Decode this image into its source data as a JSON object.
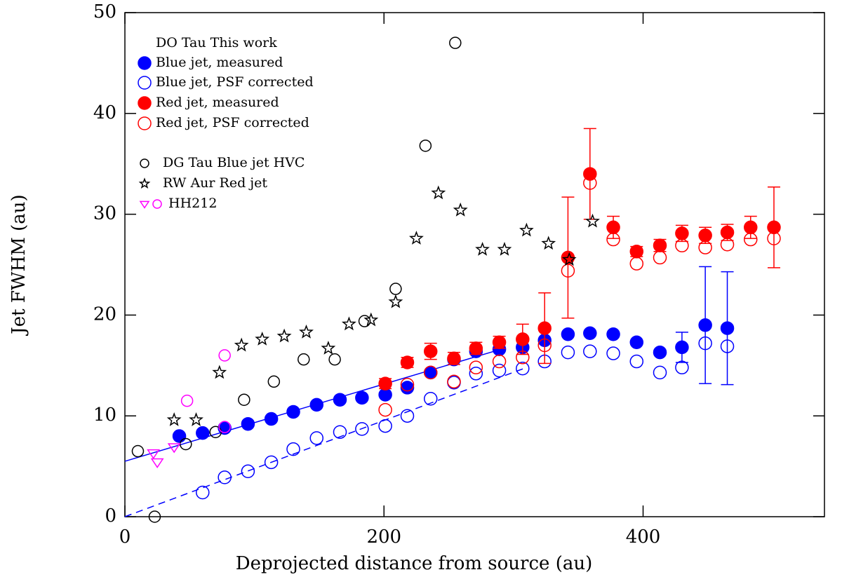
{
  "chart_data": {
    "type": "scatter",
    "xlabel": "Deprojected distance from source (au)",
    "ylabel": "Jet  FWHM (au)",
    "legend_title": "DO Tau This work",
    "legend": "upper left",
    "xlim": [
      0,
      540
    ],
    "ylim": [
      0,
      50
    ],
    "xticks": [
      0,
      200,
      400
    ],
    "yticks": [
      0,
      10,
      20,
      30,
      40,
      50
    ],
    "series": [
      {
        "name": "Blue jet, measured",
        "color": "#0000ff",
        "marker": "circle",
        "filled": true,
        "x": [
          42,
          60,
          77,
          95,
          113,
          130,
          148,
          166,
          183,
          201,
          218,
          236,
          254,
          271,
          289,
          307,
          324,
          342,
          359,
          377,
          395,
          413,
          430,
          448,
          465
        ],
        "values": [
          8.0,
          8.3,
          8.8,
          9.2,
          9.7,
          10.4,
          11.1,
          11.6,
          11.8,
          12.1,
          12.8,
          14.3,
          15.6,
          16.4,
          16.6,
          16.8,
          17.5,
          18.1,
          18.2,
          18.1,
          17.3,
          16.3,
          16.8,
          19.0,
          18.7
        ],
        "errors": [
          null,
          null,
          null,
          null,
          null,
          null,
          null,
          null,
          null,
          null,
          null,
          null,
          null,
          null,
          null,
          null,
          null,
          null,
          null,
          null,
          null,
          null,
          1.5,
          5.8,
          5.6
        ]
      },
      {
        "name": "Blue jet, PSF corrected",
        "color": "#0000ff",
        "marker": "circle",
        "filled": false,
        "x": [
          60,
          77,
          95,
          113,
          130,
          148,
          166,
          183,
          201,
          218,
          236,
          254,
          271,
          289,
          307,
          324,
          342,
          359,
          377,
          395,
          413,
          430,
          448,
          465
        ],
        "values": [
          2.4,
          3.9,
          4.5,
          5.4,
          6.7,
          7.8,
          8.4,
          8.7,
          9.0,
          10.0,
          11.7,
          13.3,
          14.2,
          14.5,
          14.7,
          15.4,
          16.3,
          16.4,
          16.2,
          15.4,
          14.3,
          14.8,
          17.2,
          16.9
        ]
      },
      {
        "name": "Red jet, measured",
        "color": "#ff0000",
        "marker": "circle",
        "filled": true,
        "x": [
          201,
          218,
          236,
          254,
          271,
          289,
          307,
          324,
          342,
          359,
          377,
          395,
          413,
          430,
          448,
          465,
          483,
          501
        ],
        "values": [
          13.2,
          15.3,
          16.4,
          15.7,
          16.7,
          17.3,
          17.6,
          18.7,
          25.7,
          34.0,
          28.7,
          26.3,
          26.9,
          28.1,
          27.9,
          28.2,
          28.7,
          28.7
        ],
        "errors": [
          0.5,
          0.5,
          0.8,
          0.6,
          0.6,
          0.6,
          1.5,
          3.5,
          6.0,
          4.5,
          1.1,
          0.5,
          0.6,
          0.8,
          0.8,
          0.8,
          1.1,
          4.0
        ]
      },
      {
        "name": "Red jet, PSF corrected",
        "color": "#ff0000",
        "marker": "circle",
        "filled": false,
        "x": [
          201,
          218,
          236,
          254,
          271,
          289,
          307,
          324,
          342,
          359,
          377,
          395,
          413,
          430,
          448,
          465,
          483,
          501
        ],
        "values": [
          10.6,
          13.1,
          14.3,
          13.4,
          14.8,
          15.4,
          15.8,
          17.0,
          24.4,
          33.1,
          27.5,
          25.1,
          25.7,
          26.9,
          26.7,
          27.0,
          27.5,
          27.6
        ]
      },
      {
        "name": "DG Tau Blue jet HVC",
        "color": "#000000",
        "marker": "circle",
        "filled": false,
        "x": [
          10,
          23,
          47,
          70,
          92,
          115,
          138,
          162,
          185,
          209,
          232,
          255
        ],
        "values": [
          6.5,
          0,
          7.2,
          8.4,
          11.6,
          13.4,
          15.6,
          15.6,
          19.4,
          22.6,
          36.8,
          47.0
        ]
      },
      {
        "name": "RW Aur Red jet",
        "color": "#000000",
        "marker": "star",
        "filled": false,
        "x": [
          38,
          55,
          73,
          90,
          106,
          123,
          140,
          157,
          173,
          190,
          209,
          225,
          242,
          259,
          276,
          293,
          310,
          327,
          343,
          361
        ],
        "values": [
          9.6,
          9.6,
          14.3,
          17.0,
          17.6,
          17.9,
          18.3,
          16.7,
          19.1,
          19.5,
          21.3,
          27.6,
          32.1,
          30.4,
          26.5,
          26.5,
          28.4,
          27.1,
          25.5,
          29.3
        ]
      },
      {
        "name": "HH212",
        "color": "#ff00ff",
        "marker": "triangle",
        "filled": false,
        "x": [
          22,
          25,
          38
        ],
        "values": [
          6.3,
          5.4,
          6.9
        ]
      },
      {
        "color": "#ff00ff",
        "marker": "circle",
        "filled": false,
        "x": [
          48,
          77,
          77
        ],
        "values": [
          11.5,
          16.0,
          8.9
        ]
      }
    ],
    "lines": [
      {
        "color": "#0000ff",
        "dashed": false,
        "x": [
          0,
          290
        ],
        "values": [
          5.5,
          16.6
        ]
      },
      {
        "color": "#0000ff",
        "dashed": true,
        "x": [
          0,
          310
        ],
        "values": [
          0,
          14.8
        ]
      }
    ]
  }
}
